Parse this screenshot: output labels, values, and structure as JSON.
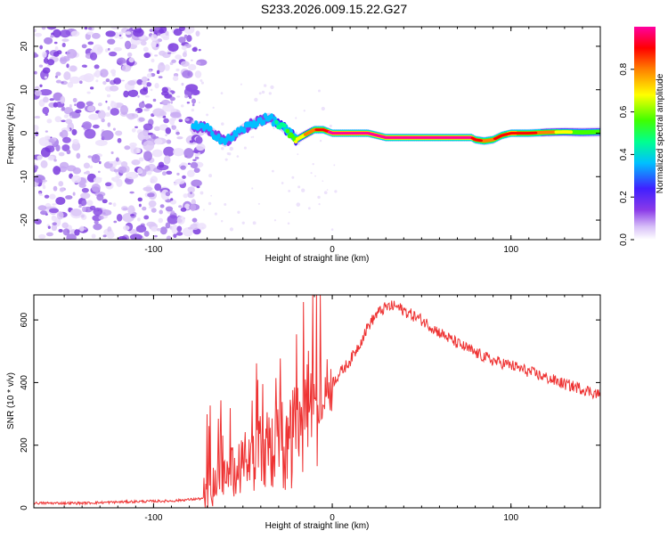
{
  "title": "S233.2026.009.15.22.G27",
  "chart_data": [
    {
      "type": "heatmap",
      "title": "S233.2026.009.15.22.G27",
      "xlabel": "Height of straight line (km)",
      "ylabel": "Frequency (Hz)",
      "xlim": [
        -167,
        150
      ],
      "ylim": [
        -24.5,
        24.5
      ],
      "xticks": [
        -100,
        0,
        100
      ],
      "yticks": [
        -20,
        -10,
        0,
        10,
        20
      ],
      "colorbar": {
        "label": "Normalized spectral amplitude",
        "range": [
          0,
          1
        ],
        "ticks": [
          "0.0",
          "0.2",
          "0.4",
          "0.6",
          "0.8"
        ],
        "tick_values": [
          0.0,
          0.2,
          0.4,
          0.6,
          0.8
        ],
        "colors": [
          "#ffffff",
          "#d8c0f8",
          "#8a3ae8",
          "#4020ff",
          "#00c0ff",
          "#00ff90",
          "#40ff00",
          "#ffff00",
          "#ff8000",
          "#ff0000",
          "#ff00a0"
        ]
      },
      "noise_region_km": [
        -167,
        -76
      ],
      "signal_track": {
        "x_km": [
          -78,
          -70,
          -60,
          -50,
          -40,
          -35,
          -28,
          -20,
          -15,
          -10,
          -5,
          0,
          10,
          20,
          30,
          50,
          70,
          78,
          80,
          85,
          90,
          95,
          100,
          110,
          120,
          130,
          140,
          150
        ],
        "freq_hz": [
          1.8,
          1.0,
          -2.0,
          1.0,
          3.0,
          3.5,
          1.5,
          -1.5,
          -0.3,
          0.8,
          0.8,
          0.0,
          0.0,
          0.0,
          -1.0,
          -1.0,
          -1.0,
          -1.0,
          -1.5,
          -1.8,
          -1.5,
          -0.5,
          0.0,
          0.0,
          0.2,
          0.3,
          0.2,
          0.3
        ],
        "amplitude": [
          0.4,
          0.45,
          0.5,
          0.45,
          0.5,
          0.45,
          0.55,
          0.7,
          0.75,
          0.85,
          0.9,
          0.98,
          0.98,
          0.95,
          0.97,
          0.98,
          0.98,
          0.95,
          0.9,
          0.85,
          0.85,
          0.9,
          0.95,
          0.9,
          0.8,
          0.7,
          0.65,
          0.6
        ]
      }
    },
    {
      "type": "line",
      "xlabel": "Height of straight line (km)",
      "ylabel": "SNR (10 * v/v)",
      "xlim": [
        -167,
        150
      ],
      "ylim": [
        0,
        680
      ],
      "xticks": [
        -100,
        0,
        100
      ],
      "yticks": [
        0,
        200,
        400,
        600
      ],
      "series": [
        {
          "name": "SNR",
          "color": "#ee3333",
          "x": [
            -167,
            -140,
            -110,
            -90,
            -72,
            -68,
            -64,
            -60,
            -56,
            -52,
            -48,
            -44,
            -40,
            -36,
            -32,
            -28,
            -24,
            -20,
            -16,
            -12,
            -8,
            -4,
            0,
            5,
            10,
            15,
            20,
            25,
            30,
            35,
            40,
            45,
            50,
            60,
            70,
            80,
            90,
            100,
            110,
            120,
            130,
            140,
            150
          ],
          "y": [
            15,
            15,
            20,
            22,
            30,
            60,
            110,
            140,
            160,
            170,
            185,
            200,
            215,
            235,
            250,
            265,
            280,
            300,
            320,
            340,
            360,
            380,
            400,
            435,
            470,
            520,
            580,
            620,
            640,
            645,
            630,
            615,
            600,
            560,
            525,
            495,
            470,
            455,
            435,
            415,
            395,
            380,
            360
          ]
        }
      ]
    }
  ]
}
